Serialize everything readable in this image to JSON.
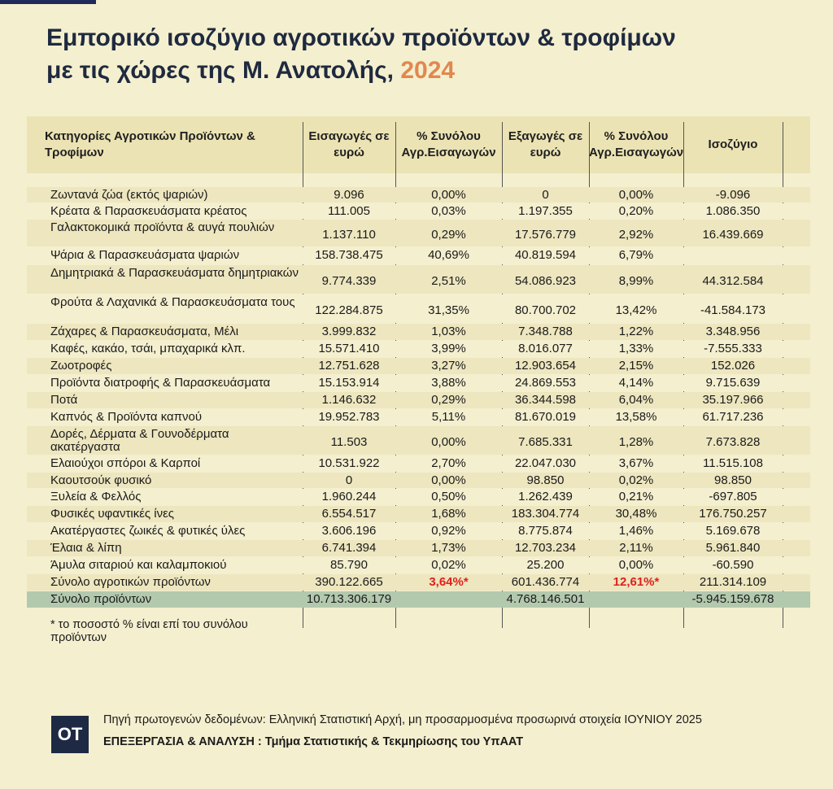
{
  "header": {
    "title": [
      "Εμπορικό ισοζύγιο αγροτικών προϊόντων & τροφίμων",
      "με τις χώρες της Μ. Ανατολής,"
    ],
    "year": "2024"
  },
  "table": {
    "columns": [
      "Κατηγορίες Αγροτικών Προϊόντων & Τροφίμων",
      "Εισαγωγές σε ευρώ",
      "% Συνόλου Αγρ.Εισαγωγών",
      "Εξαγωγές σε ευρώ",
      "% Συνόλου Αγρ.Εισαγωγών",
      "Ισοζύγιο"
    ],
    "rows": [
      [
        "Ζωντανά ζώα (εκτός ψαριών)",
        "9.096",
        "0,00%",
        "0",
        "0,00%",
        "-9.096"
      ],
      [
        "Κρέατα & Παρασκευάσματα κρέατος",
        "111.005",
        "0,03%",
        "1.197.355",
        "0,20%",
        "1.086.350"
      ],
      [
        "Γαλακτοκομικά προϊόντα & αυγά πουλιών",
        "1.137.110",
        "0,29%",
        "17.576.779",
        "2,92%",
        "16.439.669"
      ],
      [
        "Ψάρια & Παρασκευάσματα ψαριών",
        "158.738.475",
        "40,69%",
        "40.819.594",
        "6,79%",
        null
      ],
      [
        "Δημητριακά & Παρασκευάσματα δημητριακών",
        "9.774.339",
        "2,51%",
        "54.086.923",
        "8,99%",
        "44.312.584"
      ],
      [
        "Φρούτα & Λαχανικά & Παρασκευάσματα τους",
        "122.284.875",
        "31,35%",
        "80.700.702",
        "13,42%",
        "-41.584.173"
      ],
      [
        "Ζάχαρες & Παρασκευάσματα, Μέλι",
        "3.999.832",
        "1,03%",
        "7.348.788",
        "1,22%",
        "3.348.956"
      ],
      [
        "Καφές, κακάο, τσάι, μπαχαρικά κλπ.",
        "15.571.410",
        "3,99%",
        "8.016.077",
        "1,33%",
        "-7.555.333"
      ],
      [
        "Ζωοτροφές",
        "12.751.628",
        "3,27%",
        "12.903.654",
        "2,15%",
        "152.026"
      ],
      [
        "Προϊόντα διατροφής & Παρασκευάσματα",
        "15.153.914",
        "3,88%",
        "24.869.553",
        "4,14%",
        "9.715.639"
      ],
      [
        "Ποτά",
        "1.146.632",
        "0,29%",
        "36.344.598",
        "6,04%",
        "35.197.966"
      ],
      [
        "Καπνός & Προϊόντα καπνού",
        "19.952.783",
        "5,11%",
        "81.670.019",
        "13,58%",
        "61.717.236"
      ],
      [
        "Δορές, Δέρματα & Γουνοδέρματα ακατέργαστα",
        "11.503",
        "0,00%",
        "7.685.331",
        "1,28%",
        "7.673.828"
      ],
      [
        "Ελαιούχοι σπόροι & Καρποί",
        "10.531.922",
        "2,70%",
        "22.047.030",
        "3,67%",
        "11.515.108"
      ],
      [
        "Καουτσούκ φυσικό",
        "0",
        "0,00%",
        "98.850",
        "0,02%",
        "98.850"
      ],
      [
        "Ξυλεία & Φελλός",
        "1.960.244",
        "0,50%",
        "1.262.439",
        "0,21%",
        "-697.805"
      ],
      [
        "Φυσικές υφαντικές ίνες",
        "6.554.517",
        "1,68%",
        "183.304.774",
        "30,48%",
        "176.750.257"
      ],
      [
        "Ακατέργαστες ζωικές & φυτικές ύλες",
        "3.606.196",
        "0,92%",
        "8.775.874",
        "1,46%",
        "5.169.678"
      ],
      [
        "Έλαια & λίπη",
        "6.741.394",
        "1,73%",
        "12.703.234",
        "2,11%",
        "5.961.840"
      ],
      [
        "Άμυλα σιταριού και καλαμποκιού",
        "85.790",
        "0,02%",
        "25.200",
        "0,00%",
        "-60.590"
      ],
      [
        "Σύνολο αγροτικών προϊόντων",
        "390.122.665",
        "3,64%*",
        "601.436.774",
        "12,61%*",
        "211.314.109"
      ],
      [
        "Σύνολο προϊόντων",
        "10.713.306.179",
        null,
        "4.768.146.501",
        null,
        "-5.945.159.678"
      ]
    ]
  },
  "footnote": "* το ποσοστό % είναι επί του συνόλου προϊόντων",
  "footer": {
    "logo": "OT",
    "source": "Πηγή πρωτογενών δεδομένων: Ελληνική Στατιστική Αρχή, μη προσαρμοσμένα προσωρινά στοιχεία ΙΟΥΝΙΟΥ 2025",
    "credit": "ΕΠΕΞΕΡΓΑΣΙΑ & ΑΝΑΛΥΣΗ : Τμήμα Στατιστικής & Τεκμηρίωσης του ΥπΑΑΤ"
  }
}
